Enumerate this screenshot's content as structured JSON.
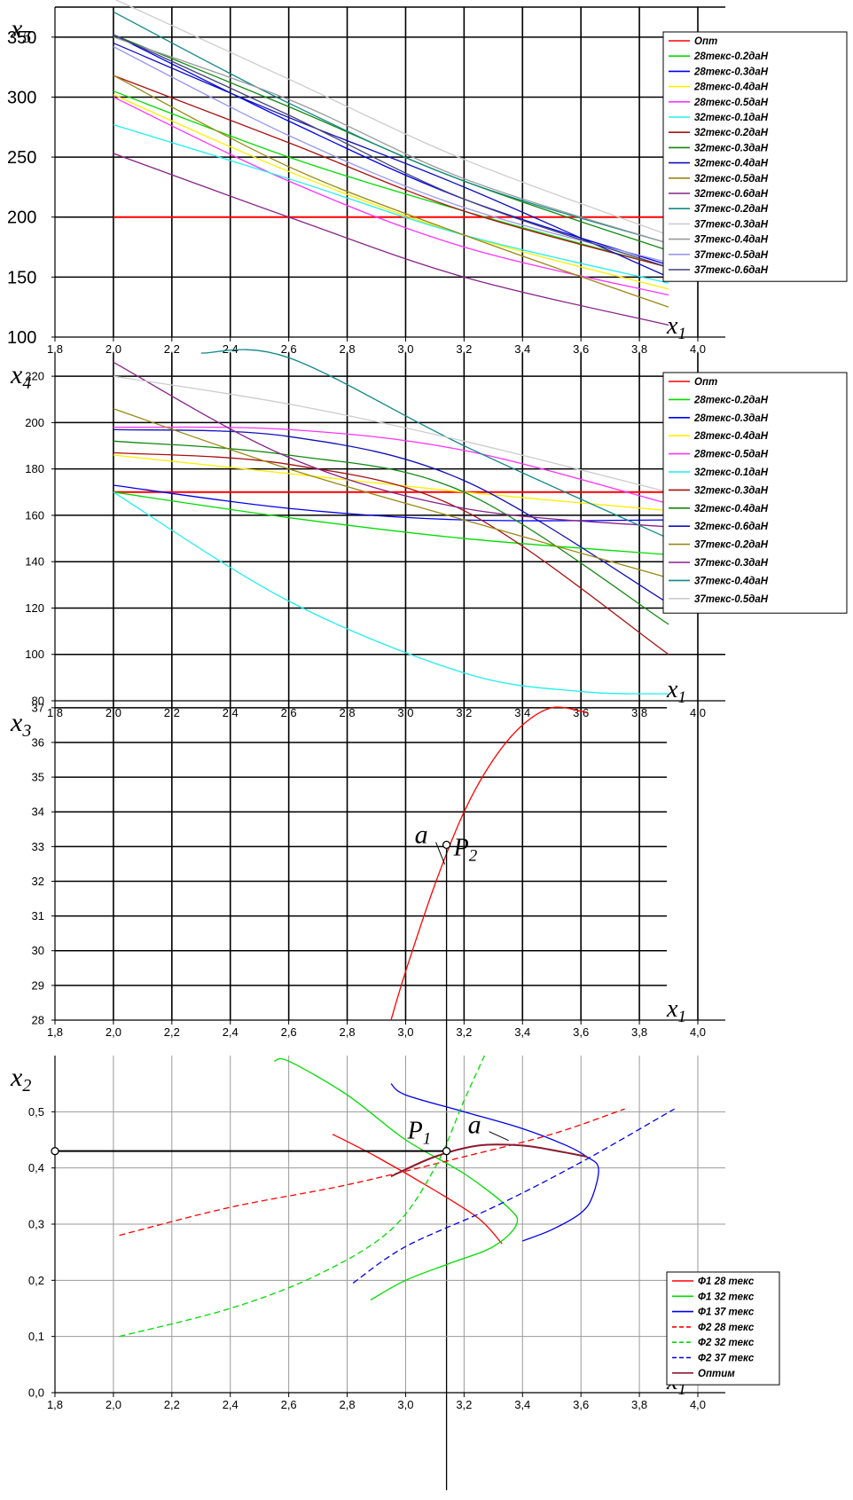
{
  "chart_data": [
    {
      "type": "line",
      "xlabel": "x1",
      "ylabel": "x5",
      "xlim": [
        1.8,
        4.0
      ],
      "ylim": [
        100,
        375
      ],
      "x_ticks": [
        "1,8",
        "2,0",
        "2,2",
        "2,4",
        "2,6",
        "2,8",
        "3,0",
        "3,2",
        "3,4",
        "3,6",
        "3,8",
        "4,0"
      ],
      "y_ticks": [
        "100",
        "150",
        "200",
        "250",
        "300",
        "350"
      ],
      "legend_position": "right",
      "series": [
        {
          "name": "Опт",
          "color": "#ff0000",
          "x": [
            2.0,
            4.0
          ],
          "y": [
            200,
            200
          ]
        },
        {
          "name": "28текс-0.2даН",
          "color": "#00dd00",
          "x": [
            2.0,
            2.6,
            3.2,
            3.9
          ],
          "y": [
            305,
            250,
            205,
            158
          ]
        },
        {
          "name": "28текс-0.3даН",
          "color": "#0000ee",
          "x": [
            2.0,
            2.6,
            3.2,
            3.9
          ],
          "y": [
            352,
            280,
            215,
            160
          ]
        },
        {
          "name": "28текс-0.4даН",
          "color": "#ffee00",
          "x": [
            2.0,
            2.6,
            3.2,
            3.9
          ],
          "y": [
            302,
            238,
            185,
            140
          ]
        },
        {
          "name": "28текс-0.5даН",
          "color": "#ff33ff",
          "x": [
            2.0,
            2.6,
            3.2,
            3.9
          ],
          "y": [
            300,
            230,
            175,
            135
          ]
        },
        {
          "name": "32текс-0.1даН",
          "color": "#22eeee",
          "x": [
            2.0,
            2.6,
            3.2,
            3.9
          ],
          "y": [
            277,
            232,
            185,
            145
          ]
        },
        {
          "name": "32текс-0.2даН",
          "color": "#aa1111",
          "x": [
            2.0,
            2.6,
            3.2,
            3.9
          ],
          "y": [
            318,
            262,
            205,
            158
          ]
        },
        {
          "name": "32текс-0.3даН",
          "color": "#118811",
          "x": [
            2.0,
            2.6,
            3.2,
            3.9
          ],
          "y": [
            352,
            292,
            230,
            172
          ]
        },
        {
          "name": "32текс-0.4даН",
          "color": "#1111bb",
          "x": [
            2.0,
            2.6,
            3.2,
            3.9
          ],
          "y": [
            345,
            283,
            225,
            150
          ]
        },
        {
          "name": "32текс-0.5даН",
          "color": "#998811",
          "x": [
            2.0,
            2.6,
            3.2,
            3.9
          ],
          "y": [
            318,
            242,
            185,
            125
          ]
        },
        {
          "name": "32текс-0.6даН",
          "color": "#882288",
          "x": [
            2.0,
            2.6,
            3.2,
            3.9
          ],
          "y": [
            253,
            200,
            150,
            110
          ]
        },
        {
          "name": "37текс-0.2даН",
          "color": "#118888",
          "x": [
            2.0,
            2.6,
            3.2,
            3.9
          ],
          "y": [
            371,
            295,
            230,
            178
          ]
        },
        {
          "name": "37текс-0.3даН",
          "color": "#cccccc",
          "x": [
            2.0,
            2.6,
            3.2,
            3.9
          ],
          "y": [
            382,
            315,
            248,
            185
          ]
        },
        {
          "name": "37текс-0.4даН",
          "color": "#999999",
          "x": [
            2.0,
            2.6,
            3.2,
            3.9
          ],
          "y": [
            350,
            298,
            232,
            178
          ]
        },
        {
          "name": "37текс-0.5даН",
          "color": "#9999ee",
          "x": [
            2.0,
            2.6,
            3.2,
            3.9
          ],
          "y": [
            342,
            268,
            208,
            162
          ]
        },
        {
          "name": "37текс-0.6даН",
          "color": "#444477",
          "x": [
            2.0,
            2.6,
            3.2,
            3.9
          ],
          "y": [
            352,
            285,
            215,
            158
          ]
        }
      ]
    },
    {
      "type": "line",
      "xlabel": "x1",
      "ylabel": "x4",
      "xlim": [
        1.8,
        4.0
      ],
      "ylim": [
        80,
        230
      ],
      "x_ticks": [
        "1,8",
        "2,0",
        "2,2",
        "2,4",
        "2,6",
        "2,8",
        "3,0",
        "3,2",
        "3,4",
        "3,6",
        "3,8",
        "4,0"
      ],
      "y_ticks": [
        "80",
        "100",
        "120",
        "140",
        "160",
        "180",
        "200",
        "220"
      ],
      "legend_position": "right",
      "series": [
        {
          "name": "Опт",
          "color": "#ff0000",
          "x": [
            2.0,
            3.9
          ],
          "y": [
            170,
            170
          ]
        },
        {
          "name": "28текс-0.2даН",
          "color": "#00dd00",
          "x": [
            2.0,
            2.6,
            3.2,
            3.9
          ],
          "y": [
            170,
            159,
            150,
            143
          ]
        },
        {
          "name": "28текс-0.3даН",
          "color": "#0000ee",
          "x": [
            2.0,
            2.6,
            3.2,
            3.9
          ],
          "y": [
            173,
            163,
            158,
            158
          ]
        },
        {
          "name": "28текс-0.4даН",
          "color": "#ffee00",
          "x": [
            2.0,
            2.6,
            3.2,
            3.9
          ],
          "y": [
            186,
            178,
            170,
            162
          ]
        },
        {
          "name": "28текс-0.5даН",
          "color": "#ff33ff",
          "x": [
            2.0,
            2.6,
            3.2,
            3.9
          ],
          "y": [
            198,
            197,
            188,
            165
          ]
        },
        {
          "name": "32текс-0.1даН",
          "color": "#22eeee",
          "x": [
            2.0,
            2.6,
            3.2,
            3.6,
            3.9
          ],
          "y": [
            170,
            123,
            92,
            84,
            83
          ]
        },
        {
          "name": "32текс-0.3даН",
          "color": "#aa1111",
          "x": [
            2.0,
            2.6,
            3.2,
            3.9
          ],
          "y": [
            187,
            182,
            162,
            100
          ]
        },
        {
          "name": "32текс-0.4даН",
          "color": "#118811",
          "x": [
            2.0,
            2.6,
            3.2,
            3.9
          ],
          "y": [
            192,
            186,
            170,
            113
          ]
        },
        {
          "name": "32текс-0.6даН",
          "color": "#1111bb",
          "x": [
            2.0,
            2.6,
            3.2,
            3.9
          ],
          "y": [
            197,
            194,
            175,
            122
          ]
        },
        {
          "name": "37текс-0.2даН",
          "color": "#998811",
          "x": [
            2.0,
            2.6,
            3.2,
            3.9
          ],
          "y": [
            206,
            180,
            158,
            133
          ]
        },
        {
          "name": "37текс-0.3даН",
          "color": "#882288",
          "x": [
            2.0,
            2.6,
            3.2,
            3.9
          ],
          "y": [
            226,
            185,
            163,
            155
          ]
        },
        {
          "name": "37текс-0.4даН",
          "color": "#118888",
          "x": [
            2.3,
            2.6,
            3.2,
            3.9
          ],
          "y": [
            230,
            228,
            190,
            150
          ]
        },
        {
          "name": "37текс-0.5даН",
          "color": "#cccccc",
          "x": [
            2.0,
            2.6,
            3.2,
            3.9
          ],
          "y": [
            220,
            208,
            192,
            170
          ]
        }
      ]
    },
    {
      "type": "line",
      "xlabel": "x1",
      "ylabel": "x3",
      "xlim": [
        1.8,
        4.0
      ],
      "ylim": [
        28,
        37.2
      ],
      "x_ticks": [
        "1,8",
        "2,0",
        "2,2",
        "2,4",
        "2,6",
        "2,8",
        "3,0",
        "3,2",
        "3,4",
        "3,6",
        "3,8",
        "4,0"
      ],
      "y_ticks": [
        "28",
        "29",
        "30",
        "31",
        "32",
        "33",
        "34",
        "35",
        "36",
        "37"
      ],
      "annotations": {
        "point_label": "P2",
        "curve_label": "a",
        "point": [
          3.14,
          33.05
        ]
      },
      "series": [
        {
          "name": "",
          "color": "#ff0000",
          "x": [
            2.95,
            3.0,
            3.1,
            3.2,
            3.3,
            3.4,
            3.5,
            3.6,
            3.62
          ],
          "y": [
            28.0,
            29.4,
            31.9,
            34.0,
            35.5,
            36.5,
            37.0,
            36.9,
            36.85
          ]
        }
      ]
    },
    {
      "type": "line",
      "xlabel": "x1",
      "ylabel": "x2",
      "xlim": [
        1.8,
        4.0
      ],
      "ylim": [
        0.0,
        0.6
      ],
      "x_ticks": [
        "1,8",
        "2,0",
        "2,2",
        "2,4",
        "2,6",
        "2,8",
        "3,0",
        "3,2",
        "3,4",
        "3,6",
        "3,8",
        "4,0"
      ],
      "y_ticks": [
        "0,0",
        "0,1",
        "0,2",
        "0,3",
        "0,4",
        "0,5"
      ],
      "annotations": {
        "point_label": "P1",
        "curve_label": "a",
        "point": [
          3.14,
          0.43
        ],
        "x_axis_marker": [
          1.8,
          0.43
        ]
      },
      "legend_position": "right",
      "series": [
        {
          "name": "Ф1 28 текс",
          "color": "#ff0000",
          "dash": false,
          "x": [
            2.75,
            2.9,
            3.1,
            3.25,
            3.33
          ],
          "y": [
            0.46,
            0.42,
            0.36,
            0.31,
            0.265
          ]
        },
        {
          "name": "Ф1 32 текс",
          "color": "#00dd00",
          "dash": false,
          "x": [
            2.55,
            2.6,
            2.8,
            3.0,
            3.2,
            3.35,
            3.38,
            3.3,
            3.15,
            3.0,
            2.88
          ],
          "y": [
            0.59,
            0.59,
            0.53,
            0.45,
            0.39,
            0.33,
            0.3,
            0.26,
            0.23,
            0.2,
            0.165
          ]
        },
        {
          "name": "Ф1 37 текс",
          "color": "#0000ee",
          "dash": false,
          "x": [
            2.95,
            3.0,
            3.2,
            3.4,
            3.55,
            3.62,
            3.66,
            3.64,
            3.6,
            3.5,
            3.4
          ],
          "y": [
            0.55,
            0.53,
            0.5,
            0.47,
            0.44,
            0.42,
            0.4,
            0.35,
            0.32,
            0.29,
            0.27
          ]
        },
        {
          "name": "Ф2 28 текс",
          "color": "#ff0000",
          "dash": true,
          "x": [
            2.02,
            2.4,
            2.8,
            3.2,
            3.5,
            3.75
          ],
          "y": [
            0.28,
            0.33,
            0.37,
            0.42,
            0.46,
            0.505
          ]
        },
        {
          "name": "Ф2 32 текс",
          "color": "#00dd00",
          "dash": true,
          "x": [
            2.02,
            2.4,
            2.7,
            2.95,
            3.1,
            3.2,
            3.27
          ],
          "y": [
            0.1,
            0.15,
            0.21,
            0.29,
            0.4,
            0.52,
            0.6
          ]
        },
        {
          "name": "Ф2 37 текс",
          "color": "#0000ee",
          "dash": true,
          "x": [
            2.82,
            3.0,
            3.3,
            3.6,
            3.92
          ],
          "y": [
            0.195,
            0.26,
            0.33,
            0.41,
            0.505
          ]
        },
        {
          "name": "Оптим",
          "color": "#8b1a2e",
          "dash": false,
          "x": [
            2.95,
            3.1,
            3.25,
            3.4,
            3.52,
            3.62
          ],
          "y": [
            0.385,
            0.42,
            0.44,
            0.44,
            0.43,
            0.42
          ]
        }
      ]
    }
  ]
}
